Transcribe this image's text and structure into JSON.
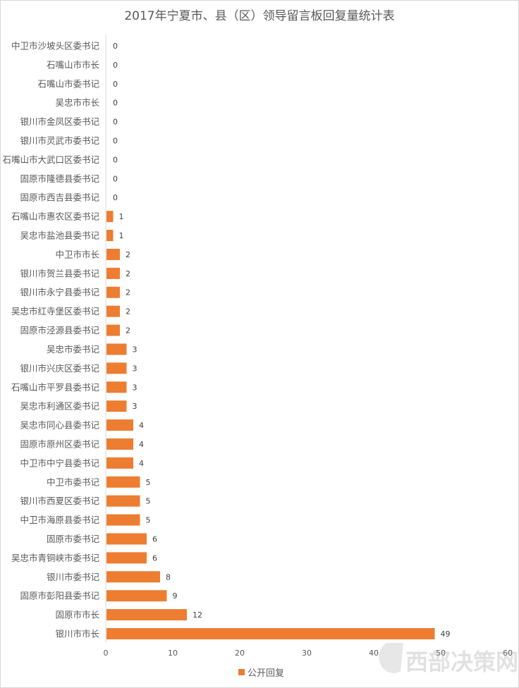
{
  "chart_data": {
    "type": "bar",
    "orientation": "horizontal",
    "title": "2017年宁夏市、县（区）领导留言板回复量统计表",
    "categories": [
      "中卫市沙坡头区委书记",
      "石嘴山市市长",
      "石嘴山市委书记",
      "吴忠市市长",
      "银川市金凤区委书记",
      "银川市灵武市委书记",
      "石嘴山市大武口区委书记",
      "固原市隆德县委书记",
      "固原市西吉县委书记",
      "石嘴山市惠农区委书记",
      "吴忠市盐池县委书记",
      "中卫市市长",
      "银川市贺兰县委书记",
      "银川市永宁县委书记",
      "吴忠市红寺堡区委书记",
      "固原市泾源县委书记",
      "吴忠市委书记",
      "银川市兴庆区委书记",
      "石嘴山市平罗县委书记",
      "吴忠市利通区委书记",
      "吴忠市同心县委书记",
      "固原市原州区委书记",
      "中卫市中宁县委书记",
      "中卫市委书记",
      "银川市西夏区委书记",
      "中卫市海原县委书记",
      "固原市委书记",
      "吴忠市青铜峡市委书记",
      "银川市委书记",
      "固原市彭阳县委书记",
      "固原市市长",
      "银川市市长"
    ],
    "series": [
      {
        "name": "公开回复",
        "values": [
          0,
          0,
          0,
          0,
          0,
          0,
          0,
          0,
          0,
          1,
          1,
          2,
          2,
          2,
          2,
          2,
          3,
          3,
          3,
          3,
          4,
          4,
          4,
          5,
          5,
          5,
          6,
          6,
          8,
          9,
          12,
          49
        ],
        "color": "#ED7D31"
      }
    ],
    "xlim": [
      0,
      60
    ],
    "xticks": [
      0,
      10,
      20,
      30,
      40,
      50,
      60
    ],
    "xlabel": "",
    "ylabel": "",
    "grid": false,
    "data_labels": true,
    "legend": "bottom"
  },
  "watermark": "西部决策网"
}
